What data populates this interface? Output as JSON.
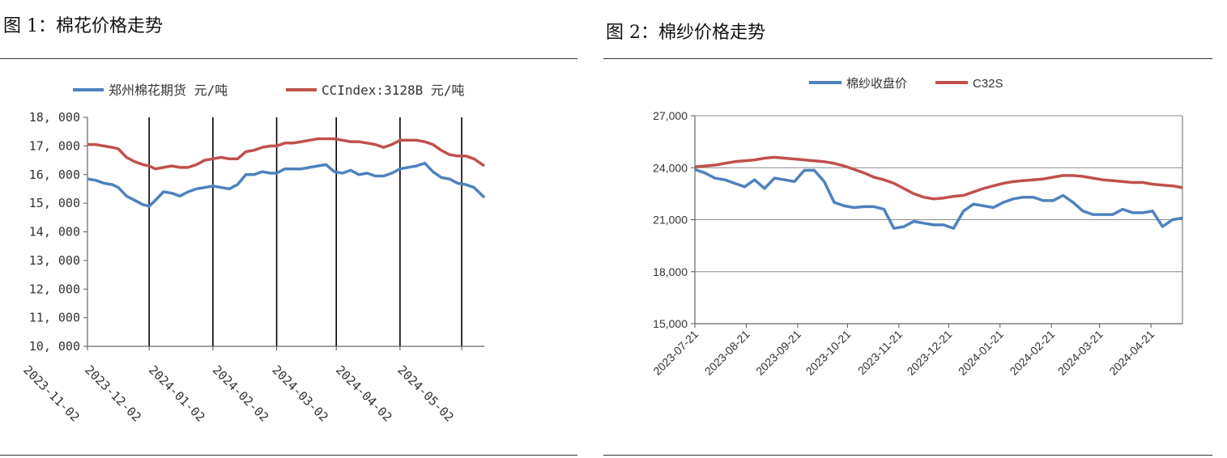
{
  "chart_data": [
    {
      "type": "line",
      "title": "图 1：棉花价格走势",
      "xlabel": "",
      "ylabel": "",
      "ylim": [
        10000,
        18000
      ],
      "yticks": [
        "18, 000",
        "17, 000",
        "16, 000",
        "15, 000",
        "14, 000",
        "13, 000",
        "12, 000",
        "11, 000",
        "10, 000"
      ],
      "xticks": [
        "2023-11-02",
        "2023-12-02",
        "2024-01-02",
        "2024-02-02",
        "2024-03-02",
        "2024-04-02",
        "2024-05-02"
      ],
      "xrange": [
        "2023-11-02",
        "2024-05-13"
      ],
      "vertical_gridlines": true,
      "legend_position": "top",
      "series": [
        {
          "name": "郑州棉花期货 元/吨",
          "color": "#4f81bd",
          "x": [
            "2023-11-02",
            "2023-11-06",
            "2023-11-10",
            "2023-11-14",
            "2023-11-17",
            "2023-11-21",
            "2023-11-25",
            "2023-11-29",
            "2023-12-02",
            "2023-12-05",
            "2023-12-09",
            "2023-12-13",
            "2023-12-17",
            "2023-12-21",
            "2023-12-25",
            "2023-12-29",
            "2024-01-02",
            "2024-01-06",
            "2024-01-10",
            "2024-01-14",
            "2024-01-18",
            "2024-01-22",
            "2024-01-26",
            "2024-01-30",
            "2024-02-02",
            "2024-02-06",
            "2024-02-10",
            "2024-02-14",
            "2024-02-18",
            "2024-02-22",
            "2024-02-26",
            "2024-03-01",
            "2024-03-05",
            "2024-03-09",
            "2024-03-13",
            "2024-03-17",
            "2024-03-21",
            "2024-03-25",
            "2024-03-29",
            "2024-04-02",
            "2024-04-06",
            "2024-04-10",
            "2024-04-14",
            "2024-04-18",
            "2024-04-22",
            "2024-04-26",
            "2024-04-30",
            "2024-05-04",
            "2024-05-08",
            "2024-05-13"
          ],
          "values": [
            15850,
            15800,
            15700,
            15650,
            15550,
            15250,
            15100,
            14950,
            14900,
            15100,
            15400,
            15350,
            15250,
            15400,
            15500,
            15550,
            15600,
            15550,
            15500,
            15650,
            16000,
            16000,
            16100,
            16050,
            16050,
            16200,
            16200,
            16200,
            16250,
            16300,
            16350,
            16100,
            16050,
            16150,
            16000,
            16050,
            15950,
            15950,
            16050,
            16200,
            16250,
            16300,
            16400,
            16100,
            15900,
            15850,
            15700,
            15650,
            15550,
            15200
          ]
        },
        {
          "name": "CCIndex:3128B 元/吨",
          "color": "#c0504d",
          "x": [
            "2023-11-02",
            "2023-11-06",
            "2023-11-10",
            "2023-11-14",
            "2023-11-17",
            "2023-11-21",
            "2023-11-25",
            "2023-11-29",
            "2023-12-02",
            "2023-12-05",
            "2023-12-09",
            "2023-12-13",
            "2023-12-17",
            "2023-12-21",
            "2023-12-25",
            "2023-12-29",
            "2024-01-02",
            "2024-01-06",
            "2024-01-10",
            "2024-01-14",
            "2024-01-18",
            "2024-01-22",
            "2024-01-26",
            "2024-01-30",
            "2024-02-02",
            "2024-02-06",
            "2024-02-10",
            "2024-02-14",
            "2024-02-18",
            "2024-02-22",
            "2024-02-26",
            "2024-03-01",
            "2024-03-05",
            "2024-03-09",
            "2024-03-13",
            "2024-03-17",
            "2024-03-21",
            "2024-03-25",
            "2024-03-29",
            "2024-04-02",
            "2024-04-06",
            "2024-04-10",
            "2024-04-14",
            "2024-04-18",
            "2024-04-22",
            "2024-04-26",
            "2024-04-30",
            "2024-05-04",
            "2024-05-08",
            "2024-05-13"
          ],
          "values": [
            17050,
            17050,
            17000,
            16950,
            16900,
            16600,
            16450,
            16350,
            16300,
            16200,
            16250,
            16300,
            16250,
            16250,
            16350,
            16500,
            16550,
            16600,
            16550,
            16550,
            16800,
            16850,
            16950,
            17000,
            17000,
            17100,
            17100,
            17150,
            17200,
            17250,
            17250,
            17250,
            17200,
            17150,
            17150,
            17100,
            17050,
            16950,
            17050,
            17200,
            17200,
            17200,
            17150,
            17050,
            16850,
            16700,
            16650,
            16650,
            16550,
            16300
          ]
        }
      ]
    },
    {
      "type": "line",
      "title": "图 2：棉纱价格走势",
      "xlabel": "",
      "ylabel": "",
      "ylim": [
        15000,
        27000
      ],
      "yticks": [
        "27,000",
        "24,000",
        "21,000",
        "18,000",
        "15,000"
      ],
      "xticks": [
        "2023-07-21",
        "2023-08-21",
        "2023-09-21",
        "2023-10-21",
        "2023-11-21",
        "2023-12-21",
        "2024-01-21",
        "2024-02-21",
        "2024-03-21",
        "2024-04-21"
      ],
      "xrange": [
        "2023-07-21",
        "2024-05-10"
      ],
      "horizontal_gridlines": true,
      "legend_position": "top",
      "series": [
        {
          "name": "棉纱收盘价",
          "color": "#4f81bd",
          "x": [
            "2023-07-21",
            "2023-07-27",
            "2023-08-02",
            "2023-08-08",
            "2023-08-14",
            "2023-08-20",
            "2023-08-26",
            "2023-09-01",
            "2023-09-07",
            "2023-09-13",
            "2023-09-19",
            "2023-09-25",
            "2023-10-01",
            "2023-10-07",
            "2023-10-13",
            "2023-10-19",
            "2023-10-25",
            "2023-10-31",
            "2023-11-06",
            "2023-11-12",
            "2023-11-18",
            "2023-11-24",
            "2023-11-30",
            "2023-12-06",
            "2023-12-12",
            "2023-12-18",
            "2023-12-24",
            "2023-12-30",
            "2024-01-05",
            "2024-01-11",
            "2024-01-17",
            "2024-01-23",
            "2024-01-29",
            "2024-02-04",
            "2024-02-10",
            "2024-02-16",
            "2024-02-22",
            "2024-02-28",
            "2024-03-05",
            "2024-03-11",
            "2024-03-17",
            "2024-03-23",
            "2024-03-29",
            "2024-04-04",
            "2024-04-10",
            "2024-04-16",
            "2024-04-22",
            "2024-04-28",
            "2024-05-04",
            "2024-05-10"
          ],
          "values": [
            23900,
            23700,
            23400,
            23300,
            23100,
            22900,
            23300,
            22800,
            23400,
            23300,
            23200,
            23850,
            23850,
            23200,
            22000,
            21800,
            21700,
            21750,
            21750,
            21600,
            20500,
            20600,
            20900,
            20800,
            20700,
            20700,
            20500,
            21500,
            21900,
            21800,
            21700,
            22000,
            22200,
            22300,
            22300,
            22100,
            22100,
            22400,
            22000,
            21500,
            21300,
            21300,
            21300,
            21600,
            21400,
            21400,
            21500,
            20600,
            21000,
            21100
          ]
        },
        {
          "name": "C32S",
          "color": "#c0504d",
          "x": [
            "2023-07-21",
            "2023-07-27",
            "2023-08-02",
            "2023-08-08",
            "2023-08-14",
            "2023-08-20",
            "2023-08-26",
            "2023-09-01",
            "2023-09-07",
            "2023-09-13",
            "2023-09-19",
            "2023-09-25",
            "2023-10-01",
            "2023-10-07",
            "2023-10-13",
            "2023-10-19",
            "2023-10-25",
            "2023-10-31",
            "2023-11-06",
            "2023-11-12",
            "2023-11-18",
            "2023-11-24",
            "2023-11-30",
            "2023-12-06",
            "2023-12-12",
            "2023-12-18",
            "2023-12-24",
            "2023-12-30",
            "2024-01-05",
            "2024-01-11",
            "2024-01-17",
            "2024-01-23",
            "2024-01-29",
            "2024-02-04",
            "2024-02-10",
            "2024-02-16",
            "2024-02-22",
            "2024-02-28",
            "2024-03-05",
            "2024-03-11",
            "2024-03-17",
            "2024-03-23",
            "2024-03-29",
            "2024-04-04",
            "2024-04-10",
            "2024-04-16",
            "2024-04-22",
            "2024-04-28",
            "2024-05-04",
            "2024-05-10"
          ],
          "values": [
            24050,
            24100,
            24150,
            24250,
            24350,
            24400,
            24450,
            24550,
            24600,
            24550,
            24500,
            24450,
            24400,
            24350,
            24250,
            24100,
            23900,
            23700,
            23450,
            23300,
            23100,
            22800,
            22500,
            22300,
            22200,
            22250,
            22350,
            22400,
            22600,
            22800,
            22950,
            23100,
            23200,
            23250,
            23300,
            23350,
            23450,
            23550,
            23550,
            23500,
            23400,
            23300,
            23250,
            23200,
            23150,
            23150,
            23050,
            23000,
            22950,
            22850
          ]
        }
      ]
    }
  ]
}
